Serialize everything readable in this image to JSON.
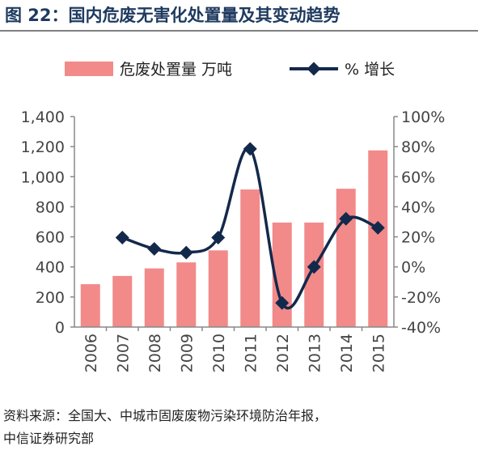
{
  "title": "图 22：国内危废无害化处置量及其变动趋势",
  "source": {
    "line1": "资料来源：全国大、中城市固废废物污染环境防治年报，",
    "line2": "中信证券研究部"
  },
  "colors": {
    "bar": "#f28a8a",
    "line": "#13294b",
    "title": "#1f3a5f"
  },
  "chart_data": {
    "type": "bar",
    "categories": [
      "2006",
      "2007",
      "2008",
      "2009",
      "2010",
      "2011",
      "2012",
      "2013",
      "2014",
      "2015"
    ],
    "series": [
      {
        "name": "危废处置量 万吨",
        "type": "bar",
        "axis": "left",
        "values": [
          285,
          340,
          390,
          430,
          510,
          915,
          695,
          695,
          920,
          1175
        ]
      },
      {
        "name": "% 增长",
        "type": "line",
        "axis": "right",
        "values": [
          null,
          19.5,
          12,
          9.5,
          19.5,
          78.5,
          -24,
          0,
          32,
          26
        ]
      }
    ],
    "y_left": {
      "min": 0,
      "max": 1400,
      "ticks": [
        "0",
        "200",
        "400",
        "600",
        "800",
        "1,000",
        "1,200",
        "1,400"
      ]
    },
    "y_right": {
      "min": -40,
      "max": 100,
      "ticks": [
        "-40%",
        "-20%",
        "0%",
        "20%",
        "40%",
        "60%",
        "80%",
        "100%"
      ]
    },
    "legend_position": "top",
    "grid": false
  }
}
